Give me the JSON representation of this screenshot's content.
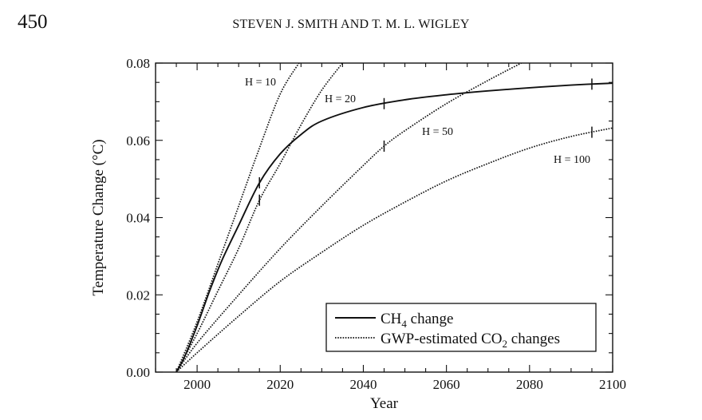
{
  "page": {
    "page_number": "450",
    "running_head": "STEVEN J. SMITH AND T. M. L. WIGLEY"
  },
  "chart_data": {
    "type": "line",
    "xlabel": "Year",
    "ylabel": "Temperature Change (°C)",
    "xlim": [
      1990,
      2100
    ],
    "ylim": [
      0,
      0.08
    ],
    "x_ticks": [
      "2000",
      "2020",
      "2040",
      "2060",
      "2080",
      "2100"
    ],
    "y_ticks": [
      "0.00",
      "0.02",
      "0.04",
      "0.06",
      "0.08"
    ],
    "x_tick_values": [
      2000,
      2020,
      2040,
      2060,
      2080,
      2100
    ],
    "y_tick_values": [
      0,
      0.02,
      0.04,
      0.06,
      0.08
    ],
    "grid": false,
    "legend_position": "bottom-right",
    "legend": [
      {
        "label": "CH",
        "sub": "4",
        "suffix": " change",
        "style": "solid"
      },
      {
        "label": "GWP-estimated CO",
        "sub": "2",
        "suffix": " changes",
        "style": "dotted"
      }
    ],
    "series": [
      {
        "style": "solid",
        "x": [
          1995,
          1997,
          2000,
          2003,
          2006,
          2010,
          2015,
          2020,
          2025,
          2030,
          2040,
          2050,
          2060,
          2070,
          2080,
          2090,
          2100
        ],
        "y": [
          0.0,
          0.004,
          0.012,
          0.021,
          0.029,
          0.038,
          0.049,
          0.0565,
          0.0615,
          0.065,
          0.0685,
          0.0705,
          0.0718,
          0.0728,
          0.0736,
          0.0743,
          0.0748
        ],
        "markers_x": [
          2015,
          2045,
          2095
        ]
      },
      {
        "label": "H = 10",
        "style": "dotted",
        "x": [
          1995,
          2000,
          2005,
          2010,
          2015,
          2020,
          2024.5
        ],
        "y": [
          0.0,
          0.013,
          0.028,
          0.043,
          0.058,
          0.072,
          0.08
        ]
      },
      {
        "label": "H = 20",
        "style": "dotted",
        "x": [
          1995,
          2000,
          2005,
          2010,
          2015,
          2020,
          2025,
          2030,
          2035
        ],
        "y": [
          0.0,
          0.01,
          0.021,
          0.032,
          0.0445,
          0.054,
          0.064,
          0.073,
          0.08
        ],
        "markers_x": [
          2015
        ]
      },
      {
        "label": "H = 50",
        "style": "dotted",
        "x": [
          1995,
          2000,
          2010,
          2020,
          2030,
          2040,
          2045,
          2050,
          2060,
          2070,
          2078
        ],
        "y": [
          0.0,
          0.0075,
          0.02,
          0.032,
          0.043,
          0.0535,
          0.0585,
          0.0625,
          0.0695,
          0.0755,
          0.08
        ],
        "markers_x": [
          2045
        ]
      },
      {
        "label": "H = 100",
        "style": "dotted",
        "x": [
          1995,
          2000,
          2010,
          2020,
          2030,
          2040,
          2050,
          2060,
          2070,
          2080,
          2090,
          2100
        ],
        "y": [
          0.0,
          0.005,
          0.0145,
          0.0235,
          0.031,
          0.038,
          0.044,
          0.0495,
          0.054,
          0.058,
          0.061,
          0.0632
        ],
        "markers_x": [
          2095
        ]
      }
    ]
  }
}
